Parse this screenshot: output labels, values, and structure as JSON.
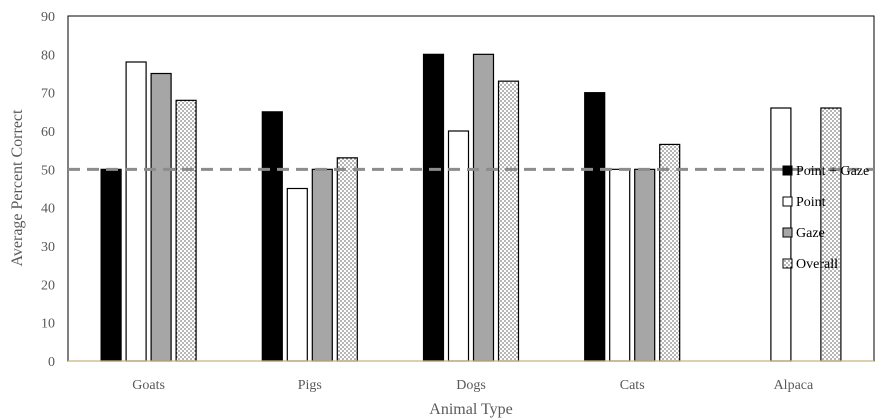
{
  "chart_data": {
    "type": "bar",
    "title": "",
    "xlabel": "Animal Type",
    "ylabel": "Average Percent Correct",
    "ylim": [
      0,
      90
    ],
    "ytick_step": 10,
    "yticks": [
      "0",
      "10",
      "20",
      "30",
      "40",
      "50",
      "60",
      "70",
      "80",
      "90"
    ],
    "categories": [
      "Goats",
      "Pigs",
      "Dogs",
      "Cats",
      "Alpaca"
    ],
    "series": [
      {
        "name": "Point + Gaze",
        "values": [
          50,
          65,
          80,
          70,
          null
        ],
        "fill": "#000000",
        "pattern": "solid"
      },
      {
        "name": "Point",
        "values": [
          78,
          45,
          60,
          50,
          66
        ],
        "fill": "#ffffff",
        "pattern": "solid"
      },
      {
        "name": "Gaze",
        "values": [
          75,
          50,
          80,
          50,
          null
        ],
        "fill": "#a6a6a6",
        "pattern": "solid"
      },
      {
        "name": "Overall",
        "values": [
          68,
          53,
          73,
          56.5,
          66
        ],
        "fill": "#ffffff",
        "pattern": "dotted"
      }
    ],
    "reference_line": {
      "value": 50,
      "style": "dashed",
      "color": "#8c8c8c"
    },
    "legend_position": "right",
    "grid": false
  }
}
